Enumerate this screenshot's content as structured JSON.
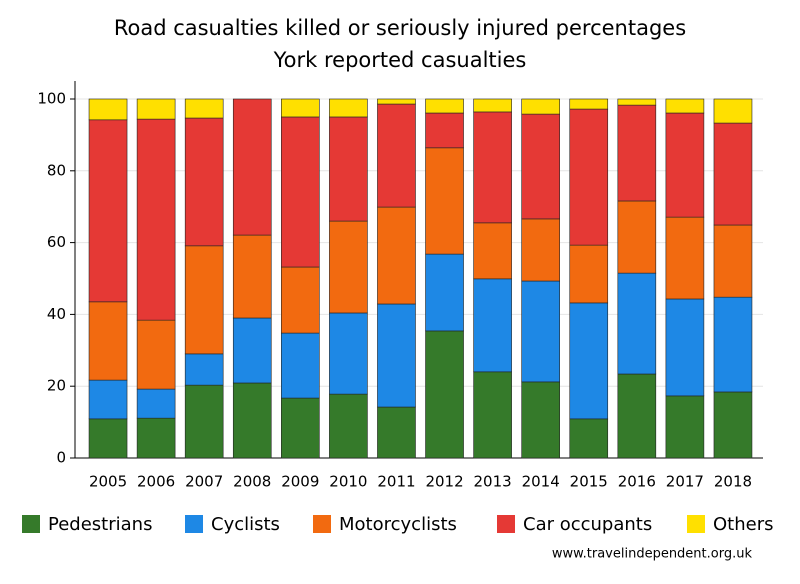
{
  "chart_data": {
    "type": "stacked_bar",
    "title": "Road casualties killed or seriously injured percentages",
    "subtitle": "York reported casualties",
    "categories": [
      "2005",
      "2006",
      "2007",
      "2008",
      "2009",
      "2010",
      "2011",
      "2012",
      "2013",
      "2014",
      "2015",
      "2016",
      "2017",
      "2018"
    ],
    "series": [
      {
        "name": "Pedestrians",
        "color": "#357a2a",
        "values": [
          10.9,
          11.1,
          20.3,
          20.9,
          16.7,
          17.8,
          14.2,
          35.4,
          24.0,
          21.2,
          10.9,
          23.4,
          17.3,
          18.4
        ]
      },
      {
        "name": "Cyclists",
        "color": "#1e88e5",
        "values": [
          10.8,
          8.1,
          8.7,
          18.1,
          18.1,
          22.6,
          28.7,
          21.4,
          25.9,
          28.1,
          32.3,
          28.1,
          27.0,
          26.4
        ]
      },
      {
        "name": "Motorcyclists",
        "color": "#f26a10",
        "values": [
          21.8,
          19.2,
          30.1,
          23.1,
          18.4,
          25.6,
          27.0,
          29.6,
          15.6,
          17.3,
          16.1,
          20.1,
          22.8,
          20.1
        ]
      },
      {
        "name": "Car occupants",
        "color": "#e53935",
        "values": [
          50.7,
          56.0,
          35.6,
          37.9,
          41.8,
          29.0,
          28.7,
          9.7,
          30.9,
          29.2,
          37.9,
          26.7,
          29.0,
          28.4
        ]
      },
      {
        "name": "Others",
        "color": "#ffe000",
        "values": [
          5.8,
          5.6,
          5.3,
          0,
          5.0,
          5.0,
          1.4,
          3.9,
          3.6,
          4.2,
          2.8,
          1.7,
          3.9,
          6.7
        ]
      }
    ],
    "ylim": [
      0,
      100
    ],
    "yticks": [
      0,
      20,
      40,
      60,
      80,
      100
    ],
    "grid": true,
    "source": "www.travelindependent.org.uk"
  }
}
